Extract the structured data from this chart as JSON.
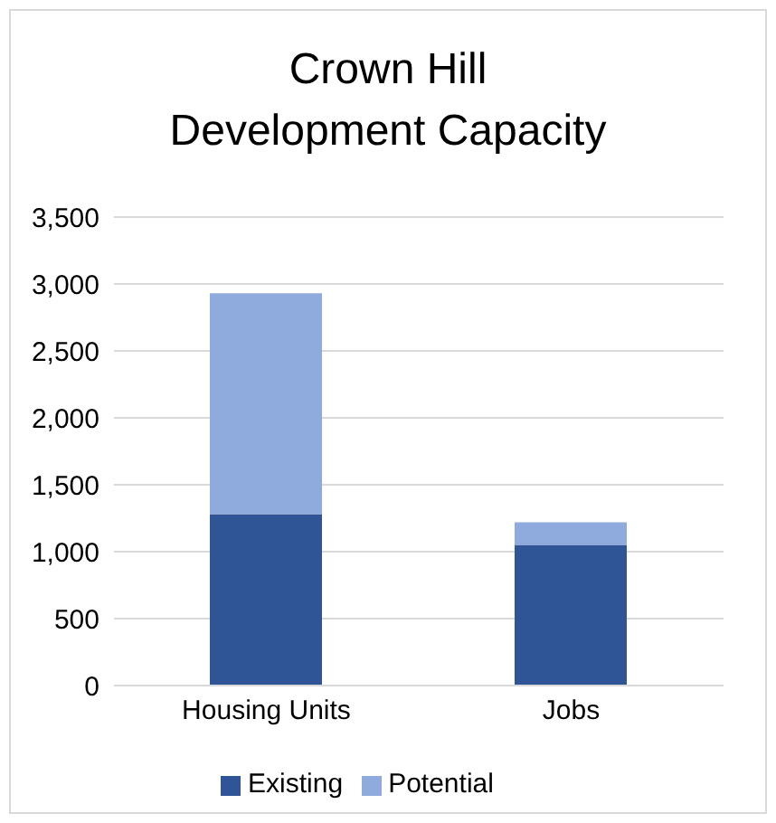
{
  "chart_data": {
    "type": "bar",
    "title": "Crown Hill Development Capacity",
    "categories": [
      "Housing Units",
      "Jobs"
    ],
    "stacked": true,
    "series": [
      {
        "name": "Existing",
        "color": "#2f5597",
        "values": [
          1280,
          1050
        ]
      },
      {
        "name": "Potential",
        "color": "#8faadc",
        "values": [
          1650,
          170
        ]
      }
    ],
    "ylim": [
      0,
      3500
    ],
    "yticks": [
      0,
      500,
      {
        "value": 1000,
        "label": "1,000"
      },
      {
        "value": 1500,
        "label": "1,500"
      },
      {
        "value": 2000,
        "label": "2,000"
      },
      {
        "value": 2500,
        "label": "2,500"
      },
      {
        "value": 3000,
        "label": "3,000"
      },
      {
        "value": 3500,
        "label": "3,500"
      }
    ],
    "grid": "y",
    "legend": "bottom"
  }
}
